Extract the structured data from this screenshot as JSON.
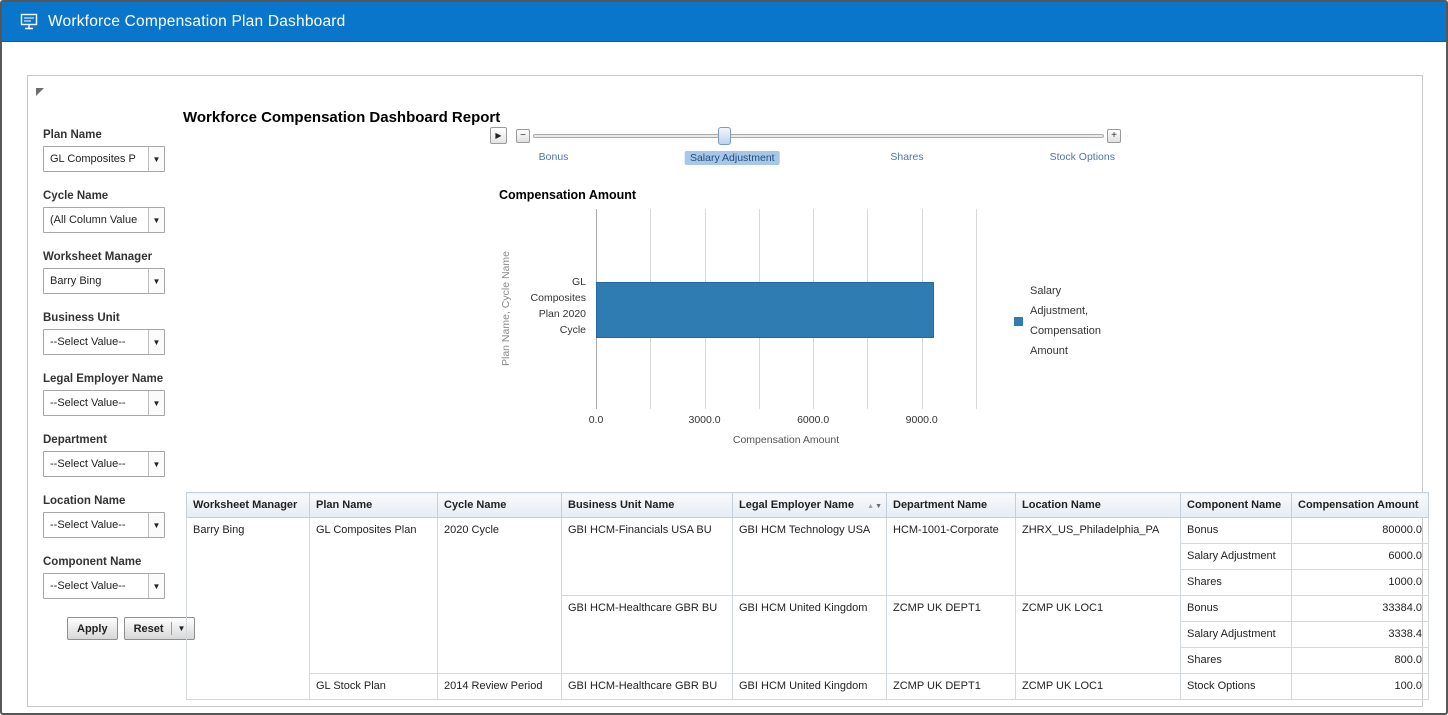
{
  "header": {
    "title": "Workforce Compensation Plan Dashboard"
  },
  "panel": {
    "report_title": "Workforce Compensation Dashboard Report"
  },
  "filters": {
    "items": [
      {
        "label": "Plan Name",
        "value": "GL Composites P"
      },
      {
        "label": "Cycle Name",
        "value": "(All Column Value"
      },
      {
        "label": "Worksheet Manager",
        "value": "Barry Bing"
      },
      {
        "label": "Business Unit",
        "value": "--Select Value--"
      },
      {
        "label": "Legal Employer Name",
        "value": "--Select Value--"
      },
      {
        "label": "Department",
        "value": "--Select Value--"
      },
      {
        "label": "Location Name",
        "value": "--Select Value--"
      },
      {
        "label": "Component Name",
        "value": "--Select Value--"
      }
    ],
    "apply_label": "Apply",
    "reset_label": "Reset",
    "dropdown_caret": "▼"
  },
  "slider": {
    "play_icon": "▶",
    "minus": "−",
    "plus": "+",
    "labels": [
      "Bonus",
      "Salary Adjustment",
      "Shares",
      "Stock Options"
    ],
    "selected": "Salary Adjustment",
    "handle_pct": 34.4,
    "label_pcts": [
      3.6,
      34.9,
      65.5,
      96.2
    ]
  },
  "chart_data": {
    "type": "bar",
    "orientation": "horizontal",
    "title": "Compensation Amount",
    "categories": [
      "GL Composites Plan 2020 Cycle"
    ],
    "series": [
      {
        "name": "Salary Adjustment, Compensation Amount",
        "values": [
          9338.4
        ]
      }
    ],
    "xlabel": "Compensation Amount",
    "ylabel": "Plan Name, Cycle Name",
    "xlim": [
      0,
      10500
    ],
    "xticks": [
      0,
      3000,
      6000,
      9000
    ],
    "grid_step": 1500,
    "grid": true,
    "legend_position": "right",
    "bar_color": "#2F7CB3"
  },
  "table": {
    "columns": [
      "Worksheet Manager",
      "Plan Name",
      "Cycle Name",
      "Business Unit Name",
      "Legal Employer Name",
      "Department Name",
      "Location Name",
      "Component Name",
      "Compensation Amount"
    ],
    "sort_icons": {
      "asc": "▲",
      "desc": "▼"
    },
    "rows": [
      [
        "Barry Bing",
        "GL Composites Plan",
        "2020 Cycle",
        "GBI HCM-Financials USA BU",
        "GBI HCM Technology USA",
        "HCM-1001-Corporate",
        "ZHRX_US_Philadelphia_PA",
        "Bonus",
        "80000.0"
      ],
      [
        "Salary Adjustment",
        "6000.0"
      ],
      [
        "Shares",
        "1000.0"
      ],
      [
        "GBI HCM-Healthcare GBR BU",
        "GBI HCM United Kingdom",
        "ZCMP UK DEPT1",
        "ZCMP UK LOC1",
        "Bonus",
        "33384.0"
      ],
      [
        "Salary Adjustment",
        "3338.4"
      ],
      [
        "Shares",
        "800.0"
      ],
      [
        "GL Stock Plan",
        "2014 Review Period",
        "GBI HCM-Healthcare GBR BU",
        "GBI HCM United Kingdom",
        "ZCMP UK DEPT1",
        "ZCMP UK LOC1",
        "Stock Options",
        "100.0"
      ]
    ]
  }
}
